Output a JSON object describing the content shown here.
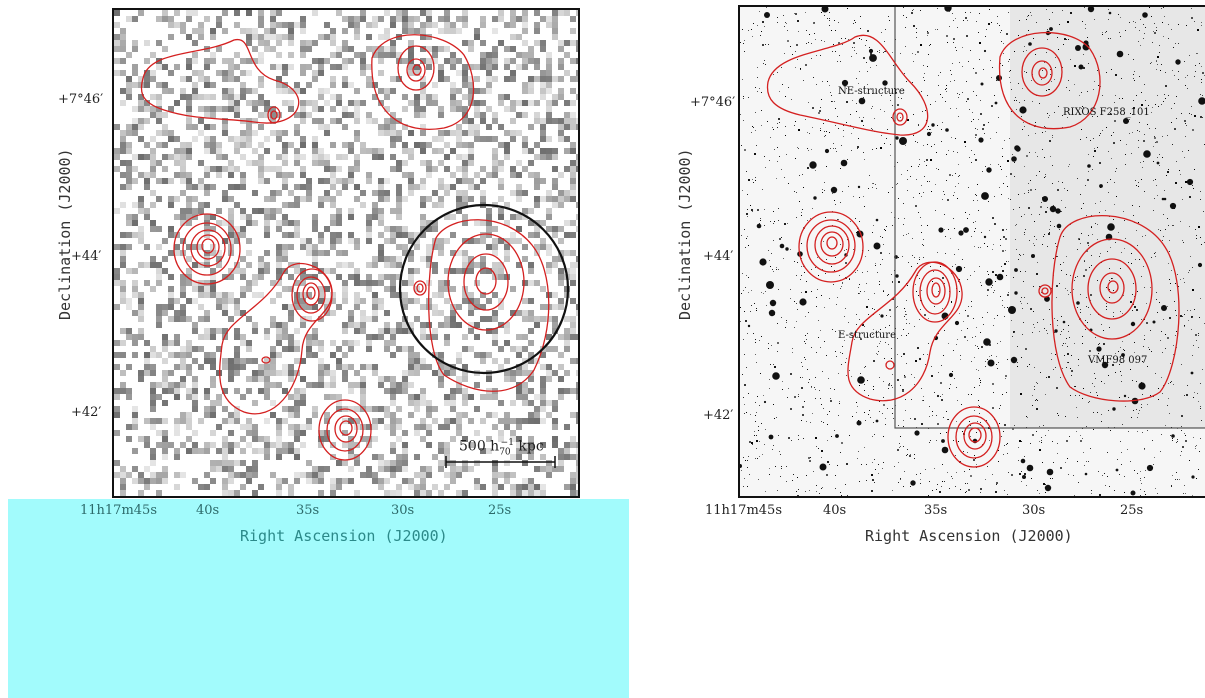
{
  "left_panel": {
    "y_axis_label": "Declination (J2000)",
    "x_axis_label": "Right Ascension (J2000)",
    "y_ticks": [
      "+7°46′",
      "+44′",
      "+42′"
    ],
    "x_ticks": [
      "11h17m45s",
      "40s",
      "35s",
      "30s",
      "25s"
    ],
    "scale_bar_label": "500 h",
    "scale_bar_sub": "70",
    "scale_bar_sup": "−1",
    "scale_bar_unit": " kpc",
    "contour_color": "#d42020",
    "circle_color": "#111111"
  },
  "right_panel": {
    "y_axis_label": "Declination (J2000)",
    "x_axis_label": "Right Ascension (J2000)",
    "y_ticks": [
      "+7°46′",
      "+44′",
      "+42′"
    ],
    "x_ticks": [
      "11h17m45s",
      "40s",
      "35s",
      "30s",
      "25s"
    ],
    "annotations": {
      "ne": "NE-structure",
      "rixos": "RIXOS F258_101",
      "e": "E-structure",
      "vmf": "VMF98 097"
    },
    "contour_color": "#d42020"
  },
  "overlay": {
    "color": "#a2fbfc"
  }
}
